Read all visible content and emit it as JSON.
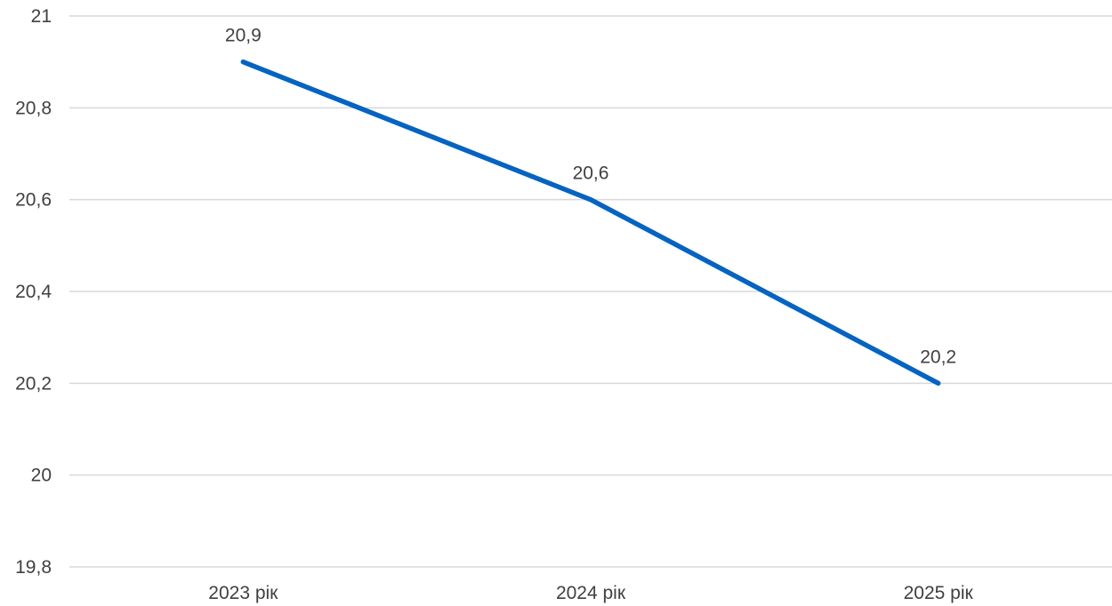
{
  "chart_data": {
    "type": "line",
    "categories": [
      "2023 рік",
      "2024 рік",
      "2025 рік"
    ],
    "series": [
      {
        "values": [
          20.9,
          20.6,
          20.2
        ],
        "data_labels": [
          "20,9",
          "20,6",
          "20,2"
        ],
        "color": "#0563c1"
      }
    ],
    "ylim": [
      19.8,
      21
    ],
    "y_ticks": [
      19.8,
      20,
      20.2,
      20.4,
      20.6,
      20.8,
      21
    ],
    "y_tick_labels": [
      "19,8",
      "20",
      "20,2",
      "20,4",
      "20,6",
      "20,8",
      "21"
    ],
    "grid": true,
    "legend": "none",
    "gridline_color": "#d9d9d9",
    "text_color": "#404040"
  }
}
